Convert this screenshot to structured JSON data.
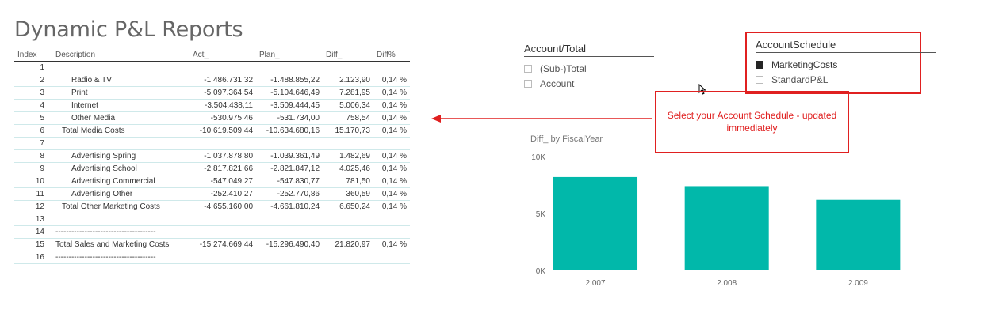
{
  "page": {
    "title": "Dynamic P&L Reports"
  },
  "table": {
    "headers": [
      "Index",
      "Description",
      "Act_",
      "Plan_",
      "Diff_",
      "Diff%"
    ],
    "rows": [
      {
        "index": "1",
        "desc": "",
        "indent": 0,
        "act": "",
        "plan": "",
        "diff": "",
        "pct": ""
      },
      {
        "index": "2",
        "desc": "Radio & TV",
        "indent": 2,
        "act": "-1.486.731,32",
        "plan": "-1.488.855,22",
        "diff": "2.123,90",
        "pct": "0,14 %"
      },
      {
        "index": "3",
        "desc": "Print",
        "indent": 2,
        "act": "-5.097.364,54",
        "plan": "-5.104.646,49",
        "diff": "7.281,95",
        "pct": "0,14 %"
      },
      {
        "index": "4",
        "desc": "Internet",
        "indent": 2,
        "act": "-3.504.438,11",
        "plan": "-3.509.444,45",
        "diff": "5.006,34",
        "pct": "0,14 %"
      },
      {
        "index": "5",
        "desc": "Other Media",
        "indent": 2,
        "act": "-530.975,46",
        "plan": "-531.734,00",
        "diff": "758,54",
        "pct": "0,14 %"
      },
      {
        "index": "6",
        "desc": "Total Media Costs",
        "indent": 1,
        "act": "-10.619.509,44",
        "plan": "-10.634.680,16",
        "diff": "15.170,73",
        "pct": "0,14 %"
      },
      {
        "index": "7",
        "desc": "",
        "indent": 0,
        "act": "",
        "plan": "",
        "diff": "",
        "pct": ""
      },
      {
        "index": "8",
        "desc": "Advertising Spring",
        "indent": 2,
        "act": "-1.037.878,80",
        "plan": "-1.039.361,49",
        "diff": "1.482,69",
        "pct": "0,14 %"
      },
      {
        "index": "9",
        "desc": "Advertising School",
        "indent": 2,
        "act": "-2.817.821,66",
        "plan": "-2.821.847,12",
        "diff": "4.025,46",
        "pct": "0,14 %"
      },
      {
        "index": "10",
        "desc": "Advertising Commercial",
        "indent": 2,
        "act": "-547.049,27",
        "plan": "-547.830,77",
        "diff": "781,50",
        "pct": "0,14 %"
      },
      {
        "index": "11",
        "desc": "Advertising Other",
        "indent": 2,
        "act": "-252.410,27",
        "plan": "-252.770,86",
        "diff": "360,59",
        "pct": "0,14 %"
      },
      {
        "index": "12",
        "desc": "Total Other Marketing Costs",
        "indent": 1,
        "act": "-4.655.160,00",
        "plan": "-4.661.810,24",
        "diff": "6.650,24",
        "pct": "0,14 %"
      },
      {
        "index": "13",
        "desc": "",
        "indent": 0,
        "act": "",
        "plan": "",
        "diff": "",
        "pct": ""
      },
      {
        "index": "14",
        "desc": "--------------------------------------",
        "indent": 0,
        "act": "",
        "plan": "",
        "diff": "",
        "pct": ""
      },
      {
        "index": "15",
        "desc": "Total Sales and Marketing Costs",
        "indent": 0,
        "act": "-15.274.669,44",
        "plan": "-15.296.490,40",
        "diff": "21.820,97",
        "pct": "0,14 %"
      },
      {
        "index": "16",
        "desc": "--------------------------------------",
        "indent": 0,
        "act": "",
        "plan": "",
        "diff": "",
        "pct": ""
      }
    ]
  },
  "slicer_account_total": {
    "title": "Account/Total",
    "items": [
      {
        "label": "(Sub-)Total",
        "checked": false
      },
      {
        "label": "Account",
        "checked": false
      }
    ]
  },
  "slicer_schedule": {
    "title": "AccountSchedule",
    "items": [
      {
        "label": "MarketingCosts",
        "checked": true
      },
      {
        "label": "StandardP&L",
        "checked": false
      }
    ]
  },
  "callout": {
    "text": "Select your Account Schedule - updated immediately"
  },
  "colors": {
    "bar": "#01b8aa",
    "annotation": "#e02020"
  },
  "chart_data": {
    "type": "bar",
    "title": "Diff_ by FiscalYear",
    "categories": [
      "2.007",
      "2.008",
      "2.009"
    ],
    "values": [
      8200,
      7400,
      6200
    ],
    "ylim": [
      0,
      10000
    ],
    "yticks": [
      {
        "value": 0,
        "label": "0K"
      },
      {
        "value": 5000,
        "label": "5K"
      },
      {
        "value": 10000,
        "label": "10K"
      }
    ],
    "grid": false
  }
}
